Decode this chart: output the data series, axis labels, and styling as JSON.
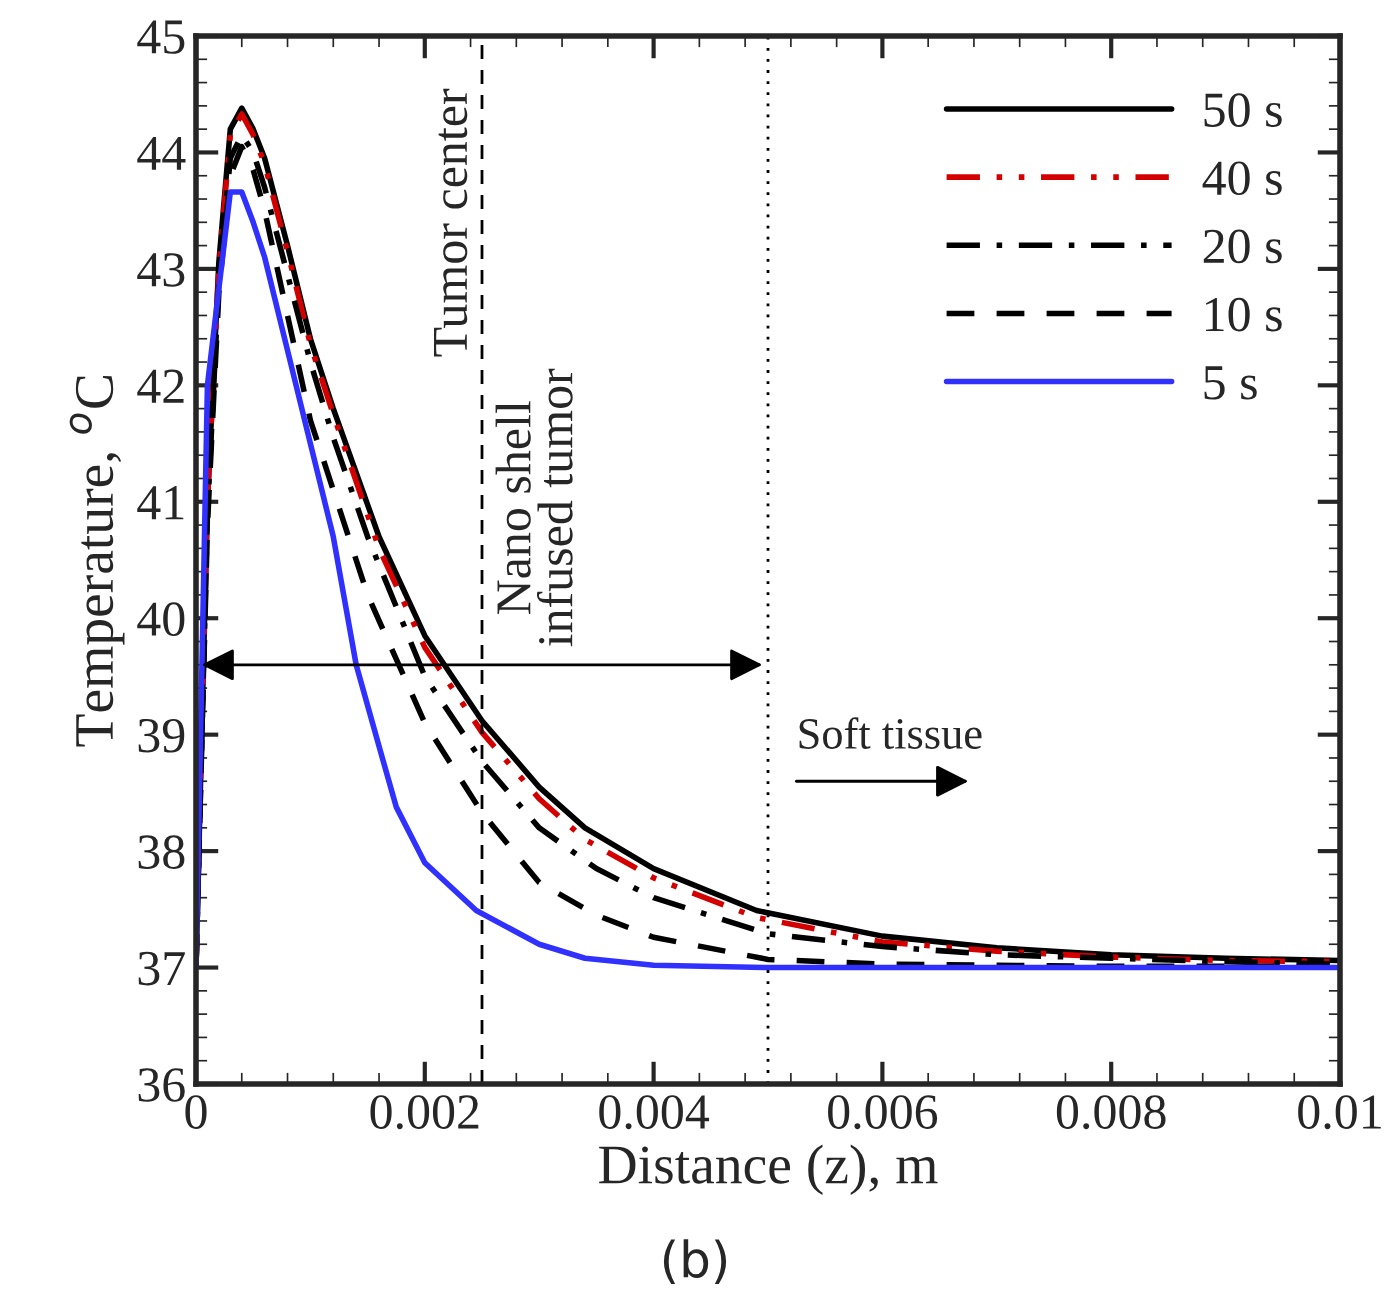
{
  "chart_data": {
    "type": "line",
    "xlabel": "Distance (z), m",
    "ylabel": "Temperature, $^{o}$C",
    "xlim": [
      0,
      0.01
    ],
    "ylim": [
      36,
      45
    ],
    "xticks": [
      0,
      0.002,
      0.004,
      0.006,
      0.008,
      0.01
    ],
    "yticks": [
      36,
      37,
      38,
      39,
      40,
      41,
      42,
      43,
      44,
      45
    ],
    "grid": false,
    "legend": "top right",
    "ref_lines": [
      {
        "axis": "x",
        "value": 0.0025,
        "label": "Tumor center",
        "line_style": "dashed",
        "color": "#000000"
      },
      {
        "axis": "x",
        "value": 0.005,
        "line_style": "dotted",
        "color": "#000000"
      }
    ],
    "annotations": [
      {
        "text": "Nano shell\ninfused tumor",
        "x": 0.0025,
        "y": 39.6
      },
      {
        "text": "Soft tissue",
        "x": 0.005,
        "y": 38.65
      },
      "(b)"
    ],
    "series": [
      {
        "name": "50 s",
        "color": "#000000",
        "line_style": "solid",
        "x": [
          0,
          0.0001,
          0.0002,
          0.0003,
          0.0004,
          0.0005,
          0.0006,
          0.0008,
          0.001,
          0.0012,
          0.0016,
          0.002,
          0.0025,
          0.003,
          0.0034,
          0.004,
          0.0049,
          0.006,
          0.007,
          0.008,
          0.009,
          0.01
        ],
        "values": [
          37.0,
          41.0,
          43.06,
          44.2,
          44.38,
          44.2,
          43.95,
          43.2,
          42.4,
          41.8,
          40.7,
          39.85,
          39.12,
          38.55,
          38.2,
          37.85,
          37.49,
          37.27,
          37.17,
          37.11,
          37.08,
          37.06
        ]
      },
      {
        "name": "40 s",
        "color": "#d40000",
        "line_style": "dashdotdot",
        "x": [
          0,
          0.0001,
          0.0002,
          0.0003,
          0.0004,
          0.0005,
          0.0006,
          0.0008,
          0.001,
          0.0012,
          0.0016,
          0.002,
          0.0025,
          0.003,
          0.0034,
          0.004,
          0.0049,
          0.006,
          0.007,
          0.008,
          0.009,
          0.01
        ],
        "values": [
          37.0,
          41.0,
          43.0,
          44.15,
          44.33,
          44.15,
          43.9,
          43.15,
          42.35,
          41.75,
          40.6,
          39.75,
          39.02,
          38.45,
          38.1,
          37.77,
          37.43,
          37.22,
          37.14,
          37.09,
          37.06,
          37.05
        ]
      },
      {
        "name": "20 s",
        "color": "#000000",
        "line_style": "dashdot",
        "x": [
          0,
          0.0001,
          0.0002,
          0.0003,
          0.0004,
          0.0005,
          0.0006,
          0.0008,
          0.001,
          0.0012,
          0.0015,
          0.002,
          0.0025,
          0.003,
          0.0035,
          0.004,
          0.005,
          0.006,
          0.007,
          0.008,
          0.009,
          0.01
        ],
        "values": [
          37.0,
          40.9,
          42.9,
          43.95,
          44.15,
          44.0,
          43.7,
          42.95,
          42.2,
          41.55,
          40.7,
          39.5,
          38.77,
          38.2,
          37.85,
          37.6,
          37.29,
          37.18,
          37.11,
          37.08,
          37.05,
          37.03
        ]
      },
      {
        "name": "10 s",
        "color": "#000000",
        "line_style": "dashed",
        "x": [
          0,
          0.0001,
          0.0002,
          0.0003,
          0.0004,
          0.0005,
          0.0006,
          0.0008,
          0.001,
          0.0012,
          0.0015,
          0.002,
          0.0025,
          0.003,
          0.0035,
          0.004,
          0.005,
          0.006,
          0.008,
          0.01
        ],
        "values": [
          37.0,
          40.8,
          42.8,
          43.8,
          44.05,
          43.85,
          43.5,
          42.6,
          41.7,
          41.1,
          40.2,
          39.1,
          38.33,
          37.73,
          37.45,
          37.26,
          37.07,
          37.03,
          37.01,
          37.01
        ]
      },
      {
        "name": "5 s",
        "color": "#3030ff",
        "line_style": "solid",
        "x": [
          0,
          0.0001,
          0.0002,
          0.0003,
          0.0004,
          0.0005,
          0.0006,
          0.0008,
          0.001,
          0.0012,
          0.0014,
          0.0016,
          0.00175,
          0.002,
          0.00245,
          0.003,
          0.0034,
          0.004,
          0.005,
          0.01
        ],
        "values": [
          37.0,
          42.0,
          42.83,
          43.66,
          43.66,
          43.4,
          43.1,
          42.3,
          41.5,
          40.7,
          39.6,
          38.9,
          38.38,
          37.9,
          37.49,
          37.2,
          37.08,
          37.02,
          37.0,
          37.0
        ]
      }
    ]
  }
}
